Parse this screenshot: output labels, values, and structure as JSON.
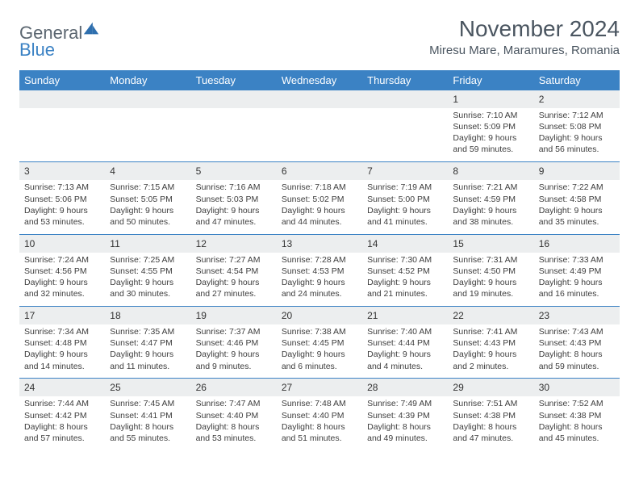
{
  "brand": {
    "name_a": "General",
    "name_b": "Blue"
  },
  "title": "November 2024",
  "location": "Miresu Mare, Maramures, Romania",
  "styling": {
    "header_bg": "#3b82c4",
    "header_fg": "#ffffff",
    "daynum_bg": "#eceeef",
    "border_color": "#3b82c4",
    "body_font_size": 10.5,
    "title_font_size": 28,
    "location_font_size": 15,
    "header_font_size": 13,
    "background": "#ffffff",
    "text_color": "#3d3d3d"
  },
  "columns": [
    "Sunday",
    "Monday",
    "Tuesday",
    "Wednesday",
    "Thursday",
    "Friday",
    "Saturday"
  ],
  "weeks": [
    [
      {
        "n": "",
        "sr": "",
        "ss": "",
        "dl": ""
      },
      {
        "n": "",
        "sr": "",
        "ss": "",
        "dl": ""
      },
      {
        "n": "",
        "sr": "",
        "ss": "",
        "dl": ""
      },
      {
        "n": "",
        "sr": "",
        "ss": "",
        "dl": ""
      },
      {
        "n": "",
        "sr": "",
        "ss": "",
        "dl": ""
      },
      {
        "n": "1",
        "sr": "Sunrise: 7:10 AM",
        "ss": "Sunset: 5:09 PM",
        "dl": "Daylight: 9 hours and 59 minutes."
      },
      {
        "n": "2",
        "sr": "Sunrise: 7:12 AM",
        "ss": "Sunset: 5:08 PM",
        "dl": "Daylight: 9 hours and 56 minutes."
      }
    ],
    [
      {
        "n": "3",
        "sr": "Sunrise: 7:13 AM",
        "ss": "Sunset: 5:06 PM",
        "dl": "Daylight: 9 hours and 53 minutes."
      },
      {
        "n": "4",
        "sr": "Sunrise: 7:15 AM",
        "ss": "Sunset: 5:05 PM",
        "dl": "Daylight: 9 hours and 50 minutes."
      },
      {
        "n": "5",
        "sr": "Sunrise: 7:16 AM",
        "ss": "Sunset: 5:03 PM",
        "dl": "Daylight: 9 hours and 47 minutes."
      },
      {
        "n": "6",
        "sr": "Sunrise: 7:18 AM",
        "ss": "Sunset: 5:02 PM",
        "dl": "Daylight: 9 hours and 44 minutes."
      },
      {
        "n": "7",
        "sr": "Sunrise: 7:19 AM",
        "ss": "Sunset: 5:00 PM",
        "dl": "Daylight: 9 hours and 41 minutes."
      },
      {
        "n": "8",
        "sr": "Sunrise: 7:21 AM",
        "ss": "Sunset: 4:59 PM",
        "dl": "Daylight: 9 hours and 38 minutes."
      },
      {
        "n": "9",
        "sr": "Sunrise: 7:22 AM",
        "ss": "Sunset: 4:58 PM",
        "dl": "Daylight: 9 hours and 35 minutes."
      }
    ],
    [
      {
        "n": "10",
        "sr": "Sunrise: 7:24 AM",
        "ss": "Sunset: 4:56 PM",
        "dl": "Daylight: 9 hours and 32 minutes."
      },
      {
        "n": "11",
        "sr": "Sunrise: 7:25 AM",
        "ss": "Sunset: 4:55 PM",
        "dl": "Daylight: 9 hours and 30 minutes."
      },
      {
        "n": "12",
        "sr": "Sunrise: 7:27 AM",
        "ss": "Sunset: 4:54 PM",
        "dl": "Daylight: 9 hours and 27 minutes."
      },
      {
        "n": "13",
        "sr": "Sunrise: 7:28 AM",
        "ss": "Sunset: 4:53 PM",
        "dl": "Daylight: 9 hours and 24 minutes."
      },
      {
        "n": "14",
        "sr": "Sunrise: 7:30 AM",
        "ss": "Sunset: 4:52 PM",
        "dl": "Daylight: 9 hours and 21 minutes."
      },
      {
        "n": "15",
        "sr": "Sunrise: 7:31 AM",
        "ss": "Sunset: 4:50 PM",
        "dl": "Daylight: 9 hours and 19 minutes."
      },
      {
        "n": "16",
        "sr": "Sunrise: 7:33 AM",
        "ss": "Sunset: 4:49 PM",
        "dl": "Daylight: 9 hours and 16 minutes."
      }
    ],
    [
      {
        "n": "17",
        "sr": "Sunrise: 7:34 AM",
        "ss": "Sunset: 4:48 PM",
        "dl": "Daylight: 9 hours and 14 minutes."
      },
      {
        "n": "18",
        "sr": "Sunrise: 7:35 AM",
        "ss": "Sunset: 4:47 PM",
        "dl": "Daylight: 9 hours and 11 minutes."
      },
      {
        "n": "19",
        "sr": "Sunrise: 7:37 AM",
        "ss": "Sunset: 4:46 PM",
        "dl": "Daylight: 9 hours and 9 minutes."
      },
      {
        "n": "20",
        "sr": "Sunrise: 7:38 AM",
        "ss": "Sunset: 4:45 PM",
        "dl": "Daylight: 9 hours and 6 minutes."
      },
      {
        "n": "21",
        "sr": "Sunrise: 7:40 AM",
        "ss": "Sunset: 4:44 PM",
        "dl": "Daylight: 9 hours and 4 minutes."
      },
      {
        "n": "22",
        "sr": "Sunrise: 7:41 AM",
        "ss": "Sunset: 4:43 PM",
        "dl": "Daylight: 9 hours and 2 minutes."
      },
      {
        "n": "23",
        "sr": "Sunrise: 7:43 AM",
        "ss": "Sunset: 4:43 PM",
        "dl": "Daylight: 8 hours and 59 minutes."
      }
    ],
    [
      {
        "n": "24",
        "sr": "Sunrise: 7:44 AM",
        "ss": "Sunset: 4:42 PM",
        "dl": "Daylight: 8 hours and 57 minutes."
      },
      {
        "n": "25",
        "sr": "Sunrise: 7:45 AM",
        "ss": "Sunset: 4:41 PM",
        "dl": "Daylight: 8 hours and 55 minutes."
      },
      {
        "n": "26",
        "sr": "Sunrise: 7:47 AM",
        "ss": "Sunset: 4:40 PM",
        "dl": "Daylight: 8 hours and 53 minutes."
      },
      {
        "n": "27",
        "sr": "Sunrise: 7:48 AM",
        "ss": "Sunset: 4:40 PM",
        "dl": "Daylight: 8 hours and 51 minutes."
      },
      {
        "n": "28",
        "sr": "Sunrise: 7:49 AM",
        "ss": "Sunset: 4:39 PM",
        "dl": "Daylight: 8 hours and 49 minutes."
      },
      {
        "n": "29",
        "sr": "Sunrise: 7:51 AM",
        "ss": "Sunset: 4:38 PM",
        "dl": "Daylight: 8 hours and 47 minutes."
      },
      {
        "n": "30",
        "sr": "Sunrise: 7:52 AM",
        "ss": "Sunset: 4:38 PM",
        "dl": "Daylight: 8 hours and 45 minutes."
      }
    ]
  ]
}
